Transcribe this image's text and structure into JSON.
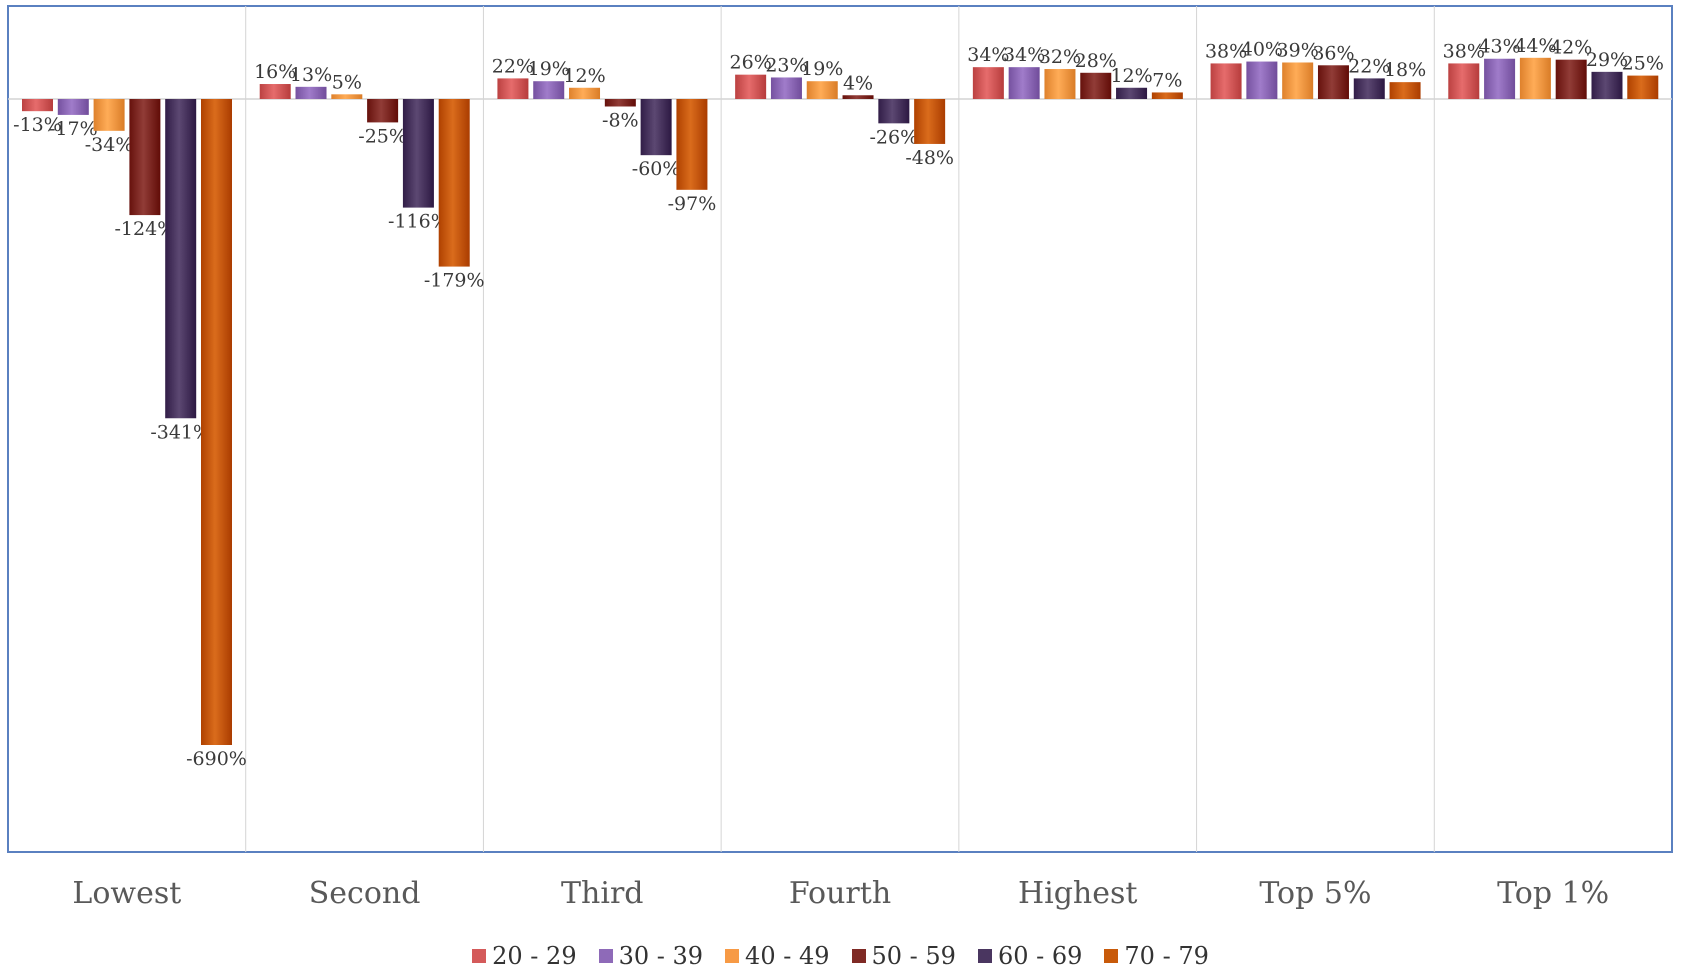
{
  "chart_data": {
    "type": "bar",
    "title": "",
    "xlabel": "",
    "ylabel": "",
    "categories": [
      "Lowest",
      "Second",
      "Third",
      "Fourth",
      "Highest",
      "Top 5%",
      "Top 1%"
    ],
    "series": [
      {
        "name": "20 - 29",
        "color": "#d45a5a",
        "values": [
          -13,
          16,
          22,
          26,
          34,
          38,
          38
        ]
      },
      {
        "name": "30 - 39",
        "color": "#8e6ab8",
        "values": [
          -17,
          13,
          19,
          23,
          34,
          40,
          43
        ]
      },
      {
        "name": "40 - 49",
        "color": "#f79a45",
        "values": [
          -34,
          5,
          12,
          19,
          32,
          39,
          44
        ]
      },
      {
        "name": "50 - 59",
        "color": "#7f2a25",
        "values": [
          -124,
          -25,
          -8,
          4,
          28,
          36,
          42
        ]
      },
      {
        "name": "60 - 69",
        "color": "#4a3660",
        "values": [
          -341,
          -116,
          -60,
          -26,
          12,
          22,
          29
        ]
      },
      {
        "name": "70 - 79",
        "color": "#c85a0a",
        "values": [
          -690,
          -179,
          -97,
          -48,
          7,
          18,
          25
        ]
      }
    ],
    "data_labels": [
      [
        "-13%",
        "-17%",
        "-34%",
        "-124%",
        "-341%",
        "-690%"
      ],
      [
        "16%",
        "13%",
        "5%",
        "-25%",
        "-116%",
        "-179%"
      ],
      [
        "22%",
        "19%",
        "12%",
        "-8%",
        "-60%",
        "-97%"
      ],
      [
        "26%",
        "23%",
        "19%",
        "4%",
        "-26%",
        "-48%"
      ],
      [
        "34%",
        "34%",
        "32%",
        "28%",
        "12%",
        "7%"
      ],
      [
        "38%",
        "40%",
        "39%",
        "36%",
        "22%",
        "18%"
      ],
      [
        "38%",
        "43%",
        "44%",
        "42%",
        "29%",
        "25%"
      ]
    ],
    "ylim": [
      -800,
      100
    ],
    "grid": false,
    "legend_position": "bottom"
  }
}
